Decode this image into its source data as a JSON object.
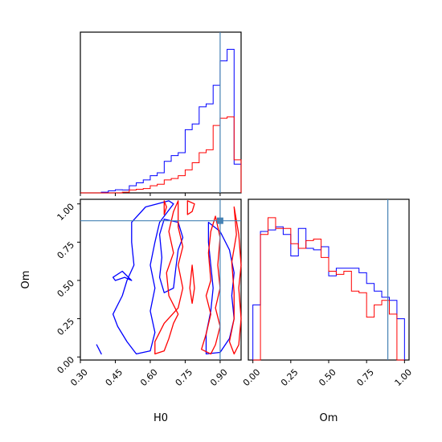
{
  "chart_data": {
    "type": "corner",
    "parameters": [
      "H0",
      "Om"
    ],
    "truth": {
      "H0": 0.9,
      "Om": 0.89
    },
    "colors": {
      "blue": "#0000ff",
      "red": "#ff0000",
      "truth": "#4682b4"
    },
    "hist_H0": {
      "bins": [
        0.3,
        0.33,
        0.36,
        0.39,
        0.42,
        0.45,
        0.48,
        0.51,
        0.54,
        0.57,
        0.6,
        0.63,
        0.66,
        0.69,
        0.72,
        0.75,
        0.78,
        0.81,
        0.84,
        0.87,
        0.9,
        0.93,
        0.96,
        0.99
      ],
      "series": [
        {
          "color": "blue",
          "values": [
            0.0,
            0.0,
            0.0,
            0.005,
            0.015,
            0.022,
            0.02,
            0.05,
            0.07,
            0.09,
            0.12,
            0.14,
            0.22,
            0.26,
            0.28,
            0.44,
            0.48,
            0.6,
            0.62,
            0.75,
            0.92,
            1.0,
            0.2
          ]
        },
        {
          "color": "red",
          "values": [
            0.0,
            0.0,
            0.0,
            0.0,
            0.0,
            0.0,
            0.005,
            0.02,
            0.025,
            0.03,
            0.05,
            0.06,
            0.09,
            0.1,
            0.12,
            0.16,
            0.21,
            0.28,
            0.3,
            0.47,
            0.52,
            0.53,
            0.23
          ]
        }
      ]
    },
    "hist_Om": {
      "bins": [
        0.0,
        0.05,
        0.1,
        0.15,
        0.2,
        0.25,
        0.3,
        0.35,
        0.4,
        0.45,
        0.5,
        0.55,
        0.6,
        0.65,
        0.7,
        0.75,
        0.8,
        0.85,
        0.9,
        0.95,
        1.0
      ],
      "series": [
        {
          "color": "blue",
          "values": [
            0.36,
            0.84,
            0.85,
            0.87,
            0.82,
            0.68,
            0.86,
            0.73,
            0.72,
            0.74,
            0.55,
            0.6,
            0.6,
            0.6,
            0.57,
            0.5,
            0.45,
            0.41,
            0.39,
            0.27
          ]
        },
        {
          "color": "red",
          "values": [
            0.0,
            0.82,
            0.93,
            0.86,
            0.86,
            0.76,
            0.73,
            0.78,
            0.79,
            0.67,
            0.58,
            0.56,
            0.58,
            0.45,
            0.44,
            0.28,
            0.36,
            0.39,
            0.3,
            0.0
          ]
        }
      ]
    },
    "joint": {
      "contours": [
        {
          "color": "blue",
          "points": [
            [
              0.68,
              1.02
            ],
            [
              0.58,
              0.98
            ],
            [
              0.52,
              0.88
            ],
            [
              0.52,
              0.75
            ],
            [
              0.53,
              0.6
            ],
            [
              0.5,
              0.5
            ],
            [
              0.48,
              0.4
            ],
            [
              0.44,
              0.28
            ],
            [
              0.46,
              0.2
            ],
            [
              0.5,
              0.1
            ],
            [
              0.54,
              0.02
            ],
            [
              0.6,
              0.04
            ],
            [
              0.62,
              0.16
            ],
            [
              0.6,
              0.3
            ],
            [
              0.62,
              0.45
            ],
            [
              0.6,
              0.6
            ],
            [
              0.62,
              0.75
            ],
            [
              0.64,
              0.88
            ],
            [
              0.7,
              1.0
            ]
          ]
        },
        {
          "color": "blue",
          "points": [
            [
              0.66,
              0.9
            ],
            [
              0.72,
              0.88
            ],
            [
              0.74,
              0.78
            ],
            [
              0.72,
              0.7
            ],
            [
              0.71,
              0.58
            ],
            [
              0.7,
              0.45
            ],
            [
              0.66,
              0.42
            ],
            [
              0.64,
              0.52
            ],
            [
              0.65,
              0.65
            ],
            [
              0.64,
              0.8
            ]
          ]
        },
        {
          "color": "blue",
          "points": [
            [
              0.85,
              0.88
            ],
            [
              0.9,
              0.82
            ],
            [
              0.94,
              0.7
            ],
            [
              0.96,
              0.55
            ],
            [
              0.95,
              0.4
            ],
            [
              0.96,
              0.25
            ],
            [
              0.94,
              0.12
            ],
            [
              0.9,
              0.03
            ],
            [
              0.84,
              0.02
            ],
            [
              0.84,
              0.15
            ],
            [
              0.86,
              0.3
            ],
            [
              0.87,
              0.45
            ],
            [
              0.86,
              0.6
            ],
            [
              0.85,
              0.75
            ]
          ]
        },
        {
          "color": "blue",
          "points": [
            [
              0.37,
              0.08
            ],
            [
              0.39,
              0.02
            ],
            [
              0.38,
              0.05
            ]
          ]
        },
        {
          "color": "blue",
          "points": [
            [
              0.48,
              0.56
            ],
            [
              0.52,
              0.5
            ],
            [
              0.49,
              0.52
            ],
            [
              0.45,
              0.5
            ],
            [
              0.44,
              0.52
            ]
          ]
        },
        {
          "color": "red",
          "points": [
            [
              0.72,
              1.02
            ],
            [
              0.72,
              0.85
            ],
            [
              0.74,
              0.72
            ],
            [
              0.72,
              0.6
            ],
            [
              0.74,
              0.45
            ],
            [
              0.72,
              0.32
            ],
            [
              0.66,
              0.22
            ],
            [
              0.62,
              0.1
            ],
            [
              0.62,
              0.02
            ],
            [
              0.66,
              0.04
            ],
            [
              0.68,
              0.12
            ],
            [
              0.7,
              0.22
            ],
            [
              0.72,
              0.28
            ],
            [
              0.68,
              0.4
            ],
            [
              0.67,
              0.55
            ],
            [
              0.7,
              0.68
            ],
            [
              0.68,
              0.82
            ],
            [
              0.7,
              0.95
            ]
          ]
        },
        {
          "color": "red",
          "points": [
            [
              0.77,
              0.45
            ],
            [
              0.78,
              0.6
            ],
            [
              0.79,
              0.45
            ],
            [
              0.78,
              0.35
            ]
          ]
        },
        {
          "color": "red",
          "points": [
            [
              0.88,
              0.92
            ],
            [
              0.9,
              0.78
            ],
            [
              0.89,
              0.6
            ],
            [
              0.9,
              0.45
            ],
            [
              0.88,
              0.32
            ],
            [
              0.9,
              0.2
            ],
            [
              0.88,
              0.08
            ],
            [
              0.86,
              0.02
            ],
            [
              0.82,
              0.05
            ],
            [
              0.84,
              0.15
            ],
            [
              0.86,
              0.28
            ],
            [
              0.84,
              0.4
            ],
            [
              0.86,
              0.5
            ],
            [
              0.85,
              0.68
            ],
            [
              0.86,
              0.82
            ]
          ]
        },
        {
          "color": "red",
          "points": [
            [
              0.96,
              0.98
            ],
            [
              0.98,
              0.8
            ],
            [
              0.99,
              0.6
            ],
            [
              0.98,
              0.45
            ],
            [
              0.99,
              0.25
            ],
            [
              0.98,
              0.08
            ],
            [
              0.96,
              0.02
            ],
            [
              0.94,
              0.1
            ],
            [
              0.96,
              0.25
            ],
            [
              0.96,
              0.42
            ],
            [
              0.95,
              0.62
            ],
            [
              0.97,
              0.8
            ]
          ]
        },
        {
          "color": "red",
          "points": [
            [
              0.66,
              1.02
            ],
            [
              0.66,
              0.93
            ],
            [
              0.67,
              0.98
            ]
          ]
        },
        {
          "color": "red",
          "points": [
            [
              0.76,
              1.02
            ],
            [
              0.76,
              0.93
            ],
            [
              0.78,
              0.95
            ],
            [
              0.79,
              1.0
            ]
          ]
        }
      ]
    },
    "axes": {
      "H0": {
        "label": "H0",
        "range": [
          0.3,
          0.99
        ],
        "ticks": [
          "0.30",
          "0.45",
          "0.60",
          "0.75",
          "0.90"
        ],
        "tick_values": [
          0.3,
          0.45,
          0.6,
          0.75,
          0.9
        ]
      },
      "Om": {
        "label": "Om",
        "range": [
          -0.02,
          1.03
        ],
        "ticks": [
          "0.00",
          "0.25",
          "0.50",
          "0.75",
          "1.00"
        ],
        "tick_values": [
          0.0,
          0.25,
          0.5,
          0.75,
          1.0
        ]
      }
    }
  }
}
